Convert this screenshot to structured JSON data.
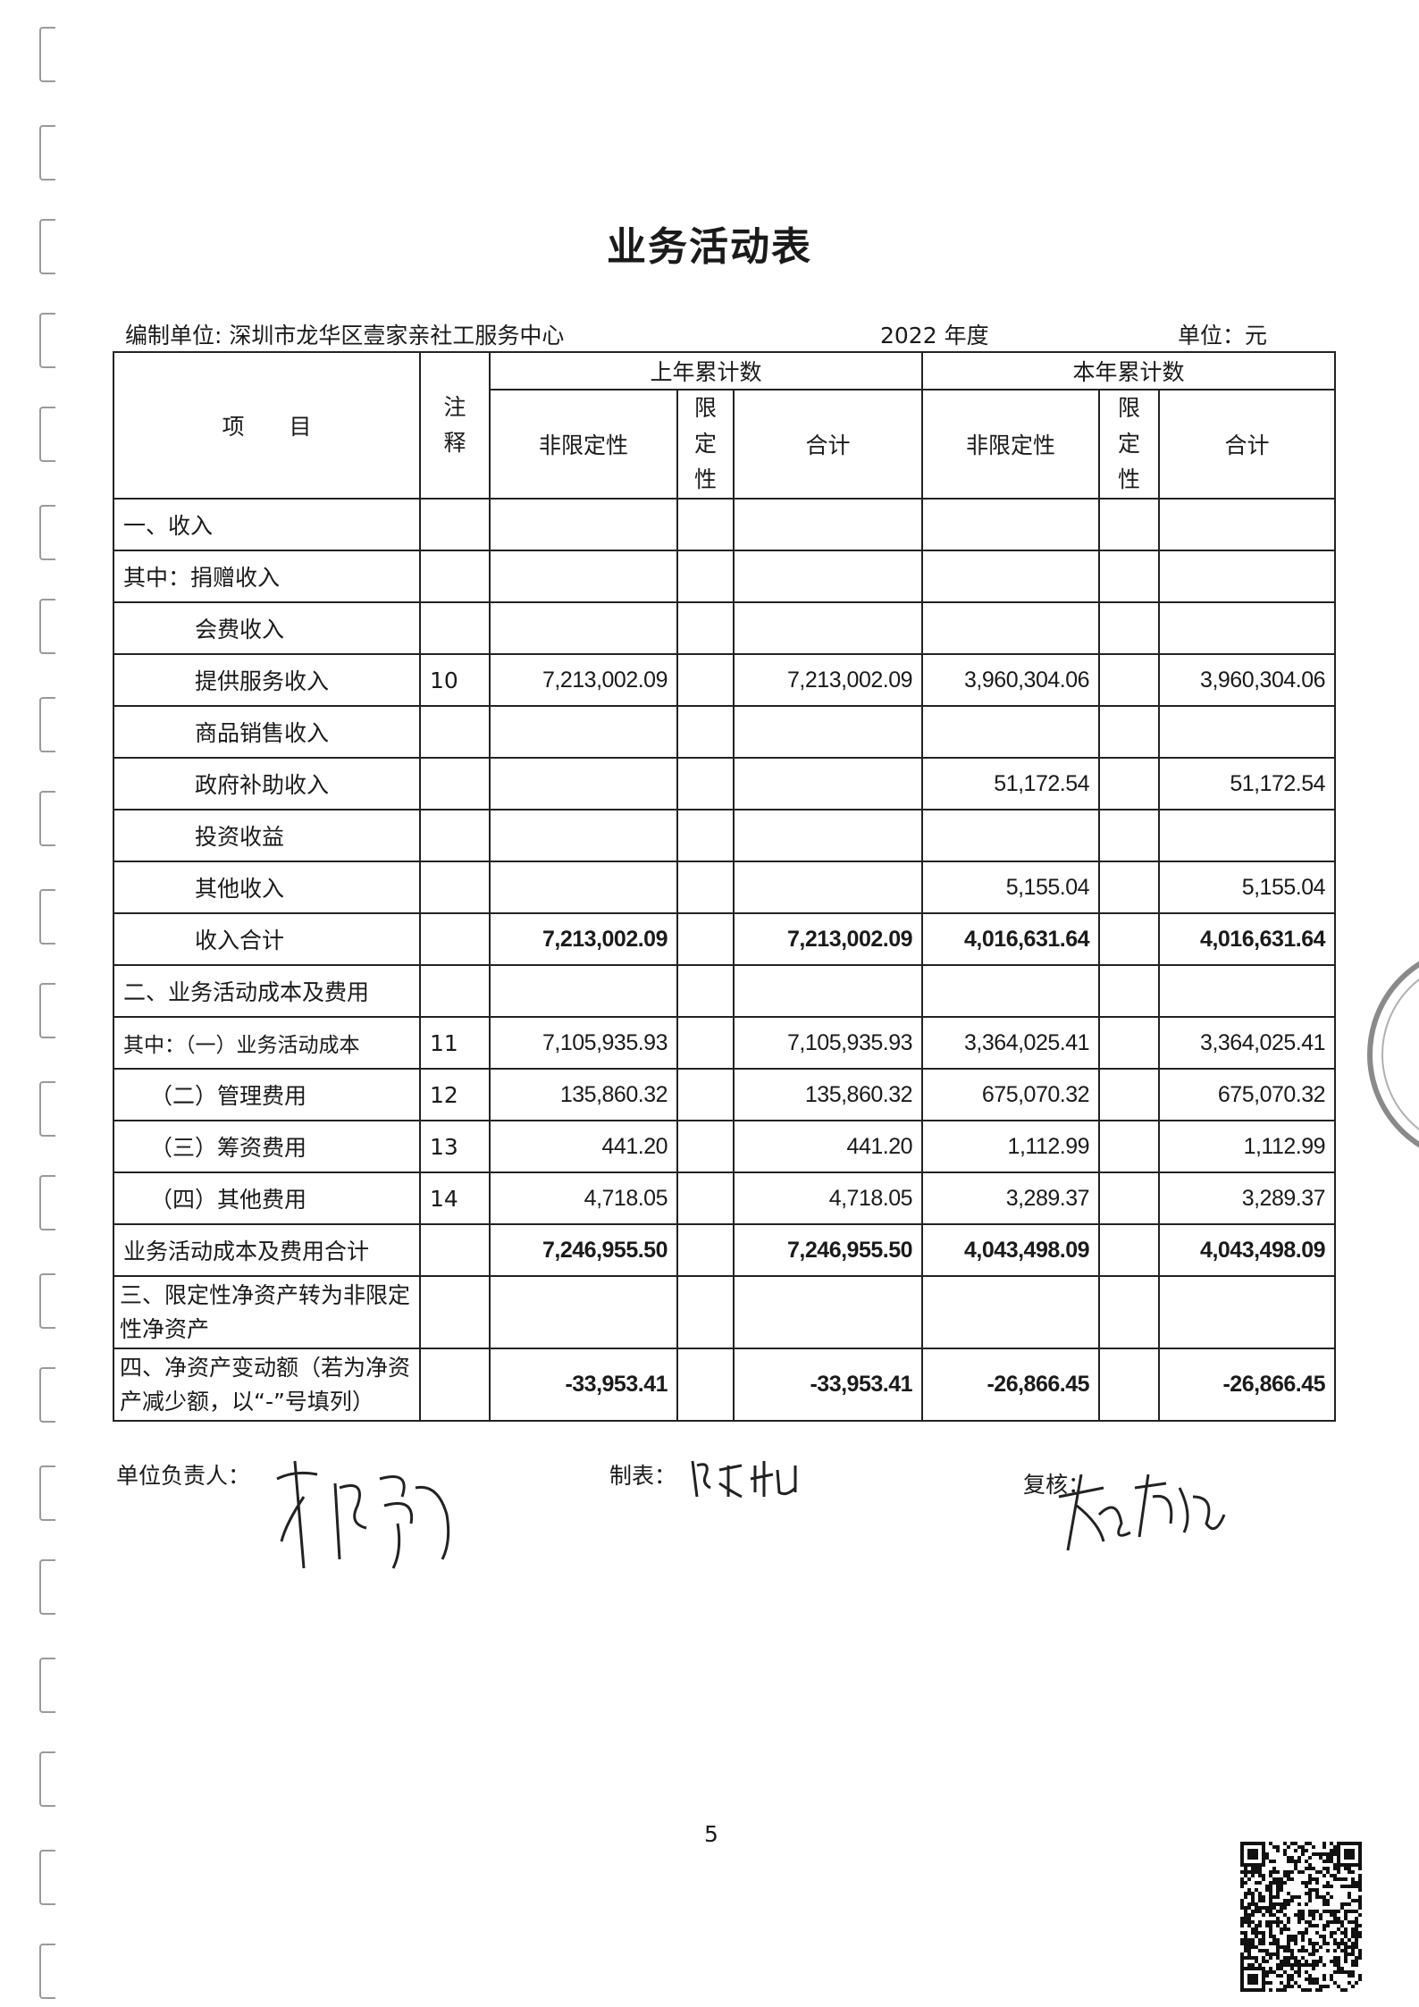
{
  "title": "业务活动表",
  "header": {
    "org_label": "编制单位: 深圳市龙华区壹家亲社工服务中心",
    "period": "2022 年度",
    "unit": "单位：元"
  },
  "columns": {
    "item": "项　　目",
    "note": "注释",
    "prev_year": "上年累计数",
    "curr_year": "本年累计数",
    "unrestricted": "非限定性",
    "restricted": "限定性",
    "total": "合计"
  },
  "rows": [
    {
      "label": "一、收入",
      "note": "",
      "values": [
        "",
        "",
        "",
        "",
        "",
        ""
      ]
    },
    {
      "label": "其中：捐赠收入",
      "note": "",
      "values": [
        "",
        "",
        "",
        "",
        "",
        ""
      ]
    },
    {
      "label": "会费收入",
      "note": "",
      "values": [
        "",
        "",
        "",
        "",
        "",
        ""
      ]
    },
    {
      "label": "提供服务收入",
      "note": "10",
      "values": [
        "7,213,002.09",
        "",
        "7,213,002.09",
        "3,960,304.06",
        "",
        "3,960,304.06"
      ]
    },
    {
      "label": "商品销售收入",
      "note": "",
      "values": [
        "",
        "",
        "",
        "",
        "",
        ""
      ]
    },
    {
      "label": "政府补助收入",
      "note": "",
      "values": [
        "",
        "",
        "",
        "51,172.54",
        "",
        "51,172.54"
      ]
    },
    {
      "label": "投资收益",
      "note": "",
      "values": [
        "",
        "",
        "",
        "",
        "",
        ""
      ]
    },
    {
      "label": "其他收入",
      "note": "",
      "values": [
        "",
        "",
        "",
        "5,155.04",
        "",
        "5,155.04"
      ]
    },
    {
      "label": "收入合计",
      "note": "",
      "values": [
        "7,213,002.09",
        "",
        "7,213,002.09",
        "4,016,631.64",
        "",
        "4,016,631.64"
      ]
    },
    {
      "label": "二、业务活动成本及费用",
      "note": "",
      "values": [
        "",
        "",
        "",
        "",
        "",
        ""
      ]
    },
    {
      "label": "其中：（一）业务活动成本",
      "note": "11",
      "values": [
        "7,105,935.93",
        "",
        "7,105,935.93",
        "3,364,025.41",
        "",
        "3,364,025.41"
      ]
    },
    {
      "label": "（二）管理费用",
      "note": "12",
      "values": [
        "135,860.32",
        "",
        "135,860.32",
        "675,070.32",
        "",
        "675,070.32"
      ]
    },
    {
      "label": "（三）筹资费用",
      "note": "13",
      "values": [
        "441.20",
        "",
        "441.20",
        "1,112.99",
        "",
        "1,112.99"
      ]
    },
    {
      "label": "（四）其他费用",
      "note": "14",
      "values": [
        "4,718.05",
        "",
        "4,718.05",
        "3,289.37",
        "",
        "3,289.37"
      ]
    },
    {
      "label": "业务活动成本及费用合计",
      "note": "",
      "values": [
        "7,246,955.50",
        "",
        "7,246,955.50",
        "4,043,498.09",
        "",
        "4,043,498.09"
      ]
    },
    {
      "label": "三、限定性净资产转为非限定性净资产",
      "note": "",
      "values": [
        "",
        "",
        "",
        "",
        "",
        ""
      ]
    },
    {
      "label": "四、净资产变动额（若为净资产减少额，以“-”号填列）",
      "note": "",
      "values": [
        "-33,953.41",
        "",
        "-33,953.41",
        "-26,866.45",
        "",
        "-26,866.45"
      ]
    }
  ],
  "footer": {
    "head_label": "单位负责人：",
    "preparer_label": "制表：",
    "reviewer_label": "复核："
  },
  "page_number": "5"
}
